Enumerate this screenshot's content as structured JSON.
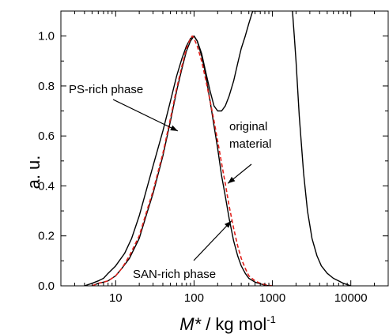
{
  "chart_data": {
    "type": "line",
    "title": "",
    "xlabel_italic": "M*",
    "xlabel_rest": " / kg mol",
    "xlabel_sup": "-1",
    "ylabel": "a. u.",
    "x_scale": "log",
    "xlim": [
      2,
      30000
    ],
    "ylim": [
      0,
      1.1
    ],
    "x_ticks": [
      10,
      100,
      1000,
      10000
    ],
    "x_tick_labels": [
      "10",
      "100",
      "1000",
      "10000"
    ],
    "y_ticks": [
      0.0,
      0.2,
      0.4,
      0.6,
      0.8,
      1.0
    ],
    "y_tick_labels": [
      "0.0",
      "0.2",
      "0.4",
      "0.6",
      "0.8",
      "1.0"
    ],
    "grid": false,
    "legend": "none",
    "series": [
      {
        "color": "#000000",
        "dash": "solid",
        "x": [
          4,
          5,
          6,
          7,
          8,
          10,
          13,
          16,
          20,
          25,
          30,
          40,
          50,
          60,
          70,
          80,
          90,
          100,
          110,
          125,
          140,
          160,
          180,
          200,
          225,
          250,
          280,
          320,
          360,
          400,
          450,
          500,
          560,
          620,
          660,
          700
        ],
        "y": [
          0.0,
          0.01,
          0.02,
          0.03,
          0.05,
          0.08,
          0.13,
          0.19,
          0.28,
          0.39,
          0.48,
          0.62,
          0.74,
          0.84,
          0.91,
          0.96,
          0.99,
          1.0,
          0.98,
          0.93,
          0.86,
          0.78,
          0.72,
          0.7,
          0.7,
          0.72,
          0.76,
          0.82,
          0.89,
          0.95,
          1.0,
          1.05,
          1.1,
          1.1,
          1.1,
          1.1
        ]
      },
      {
        "color": "#000000",
        "dash": "solid",
        "x": [
          1800,
          1900,
          2000,
          2200,
          2500,
          2800,
          3200,
          3700,
          4200,
          5000,
          6000,
          7000,
          8000,
          9000,
          10000
        ],
        "y": [
          1.1,
          1.0,
          0.9,
          0.68,
          0.45,
          0.3,
          0.19,
          0.12,
          0.08,
          0.05,
          0.03,
          0.02,
          0.01,
          0.005,
          0.0
        ]
      },
      {
        "color": "#000000",
        "dash": "solid",
        "x": [
          5,
          6,
          7,
          8,
          10,
          12,
          15,
          20,
          25,
          30,
          40,
          50,
          60,
          70,
          80,
          90,
          100,
          110,
          125,
          140,
          160,
          180,
          200,
          225,
          250,
          280,
          320,
          360,
          400,
          450,
          500,
          600,
          700,
          800,
          900
        ],
        "y": [
          0.0,
          0.01,
          0.015,
          0.02,
          0.04,
          0.07,
          0.11,
          0.19,
          0.29,
          0.37,
          0.52,
          0.66,
          0.78,
          0.87,
          0.94,
          0.98,
          1.0,
          0.98,
          0.92,
          0.85,
          0.74,
          0.64,
          0.55,
          0.44,
          0.36,
          0.27,
          0.18,
          0.12,
          0.08,
          0.05,
          0.03,
          0.015,
          0.008,
          0.003,
          0.0
        ]
      },
      {
        "color": "#e0201b",
        "dash": "dashed",
        "x": [
          5,
          6,
          7,
          8,
          10,
          12,
          15,
          20,
          25,
          30,
          40,
          50,
          60,
          70,
          80,
          90,
          95,
          100,
          110,
          125,
          140,
          160,
          180,
          200,
          225,
          250,
          280,
          320,
          360,
          400,
          450,
          500,
          600,
          700,
          800,
          900,
          1000
        ],
        "y": [
          0.0,
          0.01,
          0.015,
          0.02,
          0.04,
          0.07,
          0.12,
          0.2,
          0.3,
          0.38,
          0.53,
          0.67,
          0.79,
          0.88,
          0.95,
          0.99,
          1.0,
          0.99,
          0.96,
          0.9,
          0.83,
          0.74,
          0.66,
          0.58,
          0.49,
          0.41,
          0.32,
          0.23,
          0.16,
          0.11,
          0.07,
          0.04,
          0.02,
          0.01,
          0.005,
          0.002,
          0.0
        ]
      }
    ],
    "annotations": [
      {
        "text": "PS-rich phase",
        "arrow_to": [
          62,
          0.62
        ]
      },
      {
        "text": "original",
        "text2": "material",
        "arrow_to": [
          270,
          0.41
        ]
      },
      {
        "text": "SAN-rich phase",
        "arrow_to": [
          300,
          0.26
        ]
      }
    ]
  }
}
